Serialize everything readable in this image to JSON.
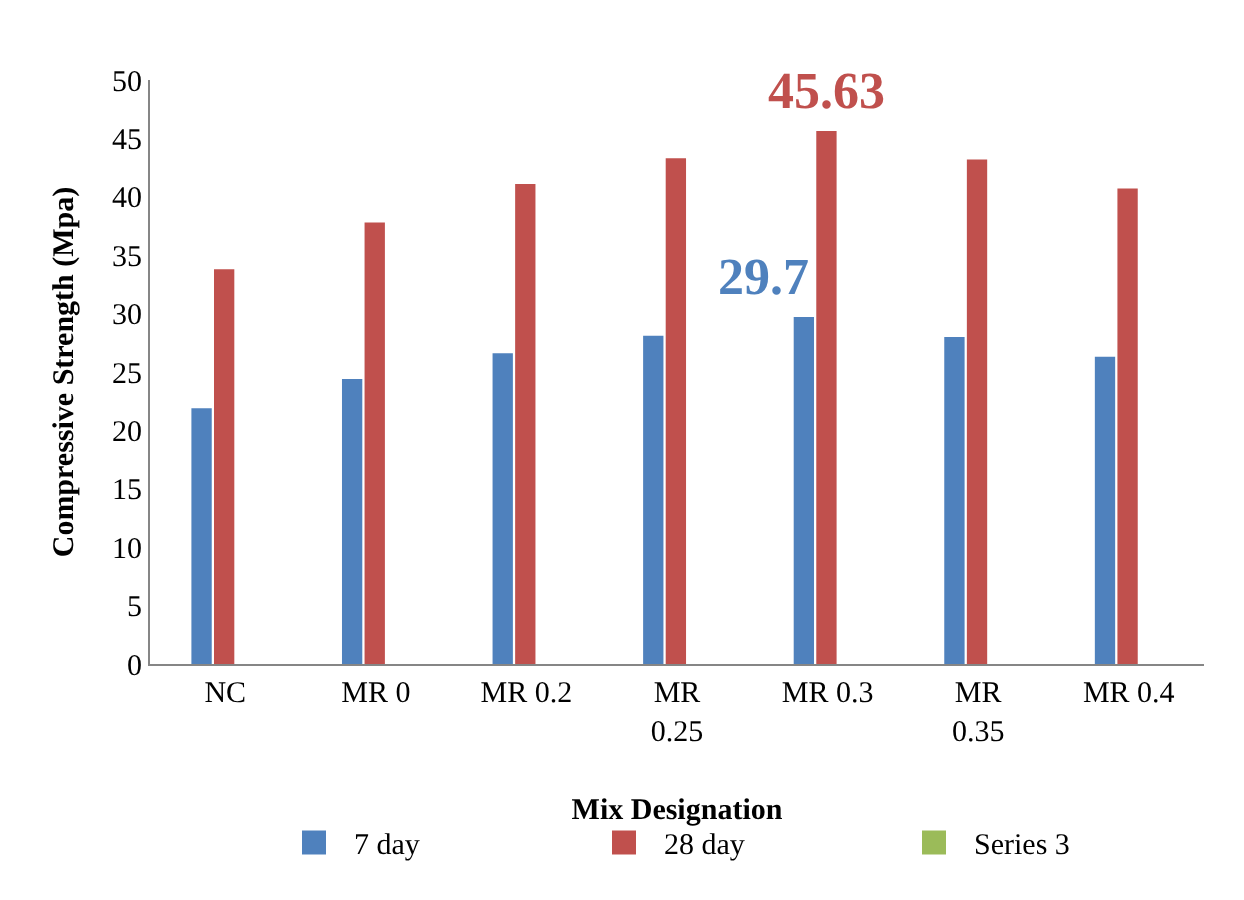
{
  "chart_data": {
    "type": "bar",
    "xlabel": "Mix Designation",
    "ylabel": "Compressive Strength (Mpa)",
    "categories": [
      "NC",
      "MR 0",
      "MR 0.2",
      "MR 0.25",
      "MR 0.3",
      "MR 0.35",
      "MR 0.4"
    ],
    "series": [
      {
        "name": "7 day",
        "color": "#4f81bd",
        "values": [
          21.9,
          24.4,
          26.6,
          28.1,
          29.7,
          28.0,
          26.3
        ],
        "value_labels": [
          null,
          null,
          null,
          null,
          "29.7",
          null,
          null
        ]
      },
      {
        "name": "28 day",
        "color": "#c0504d",
        "values": [
          33.8,
          37.8,
          41.1,
          43.3,
          45.63,
          43.2,
          40.7
        ],
        "value_labels": [
          null,
          null,
          null,
          null,
          "45.63",
          null,
          null
        ]
      },
      {
        "name": "Series 3",
        "color": "#9bbb59",
        "values": [
          null,
          null,
          null,
          null,
          null,
          null,
          null
        ]
      }
    ],
    "ylim": [
      0,
      50
    ],
    "yticks": [
      0,
      5,
      10,
      15,
      20,
      25,
      30,
      35,
      40,
      45,
      50
    ],
    "grid": false,
    "legend": "bottom right"
  }
}
